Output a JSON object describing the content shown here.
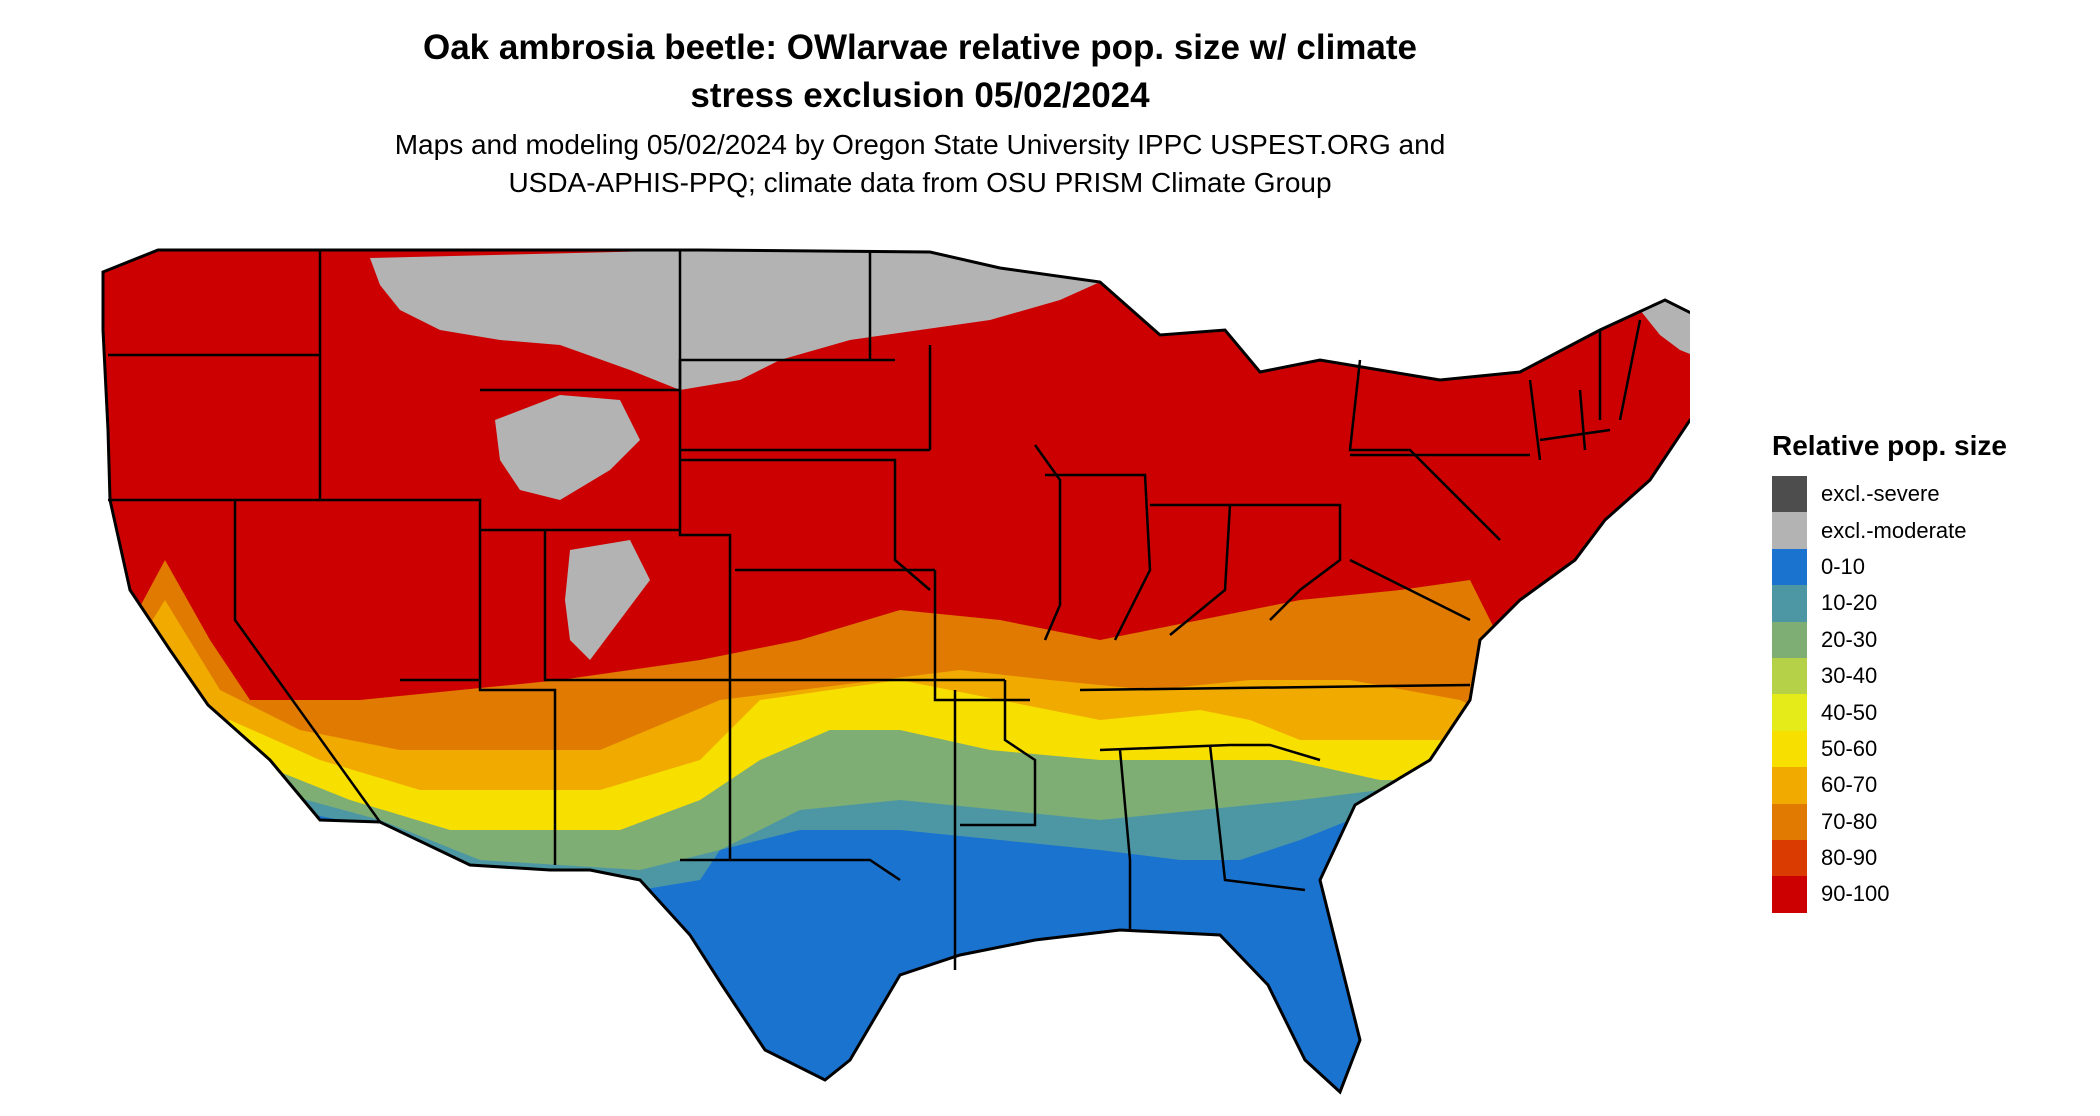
{
  "title_line1": "Oak ambrosia beetle: OWlarvae relative pop. size w/ climate",
  "title_line2": "stress exclusion 05/02/2024",
  "subtitle_line1": "Maps and modeling 05/02/2024 by Oregon State University IPPC USPEST.ORG and",
  "subtitle_line2": "USDA-APHIS-PPQ; climate data from OSU PRISM Climate Group",
  "legend": {
    "title": "Relative pop. size",
    "items": [
      {
        "label": "excl.-severe",
        "color": "#4d4d4d"
      },
      {
        "label": "excl.-moderate",
        "color": "#b3b3b3"
      },
      {
        "label": "0-10",
        "color": "#1a73cf"
      },
      {
        "label": "10-20",
        "color": "#4d97a5"
      },
      {
        "label": "20-30",
        "color": "#7fae74"
      },
      {
        "label": "30-40",
        "color": "#b5d147"
      },
      {
        "label": "40-50",
        "color": "#e5ea19"
      },
      {
        "label": "50-60",
        "color": "#f7df00"
      },
      {
        "label": "60-70",
        "color": "#f0aa00"
      },
      {
        "label": "70-80",
        "color": "#e07a00"
      },
      {
        "label": "80-90",
        "color": "#d93b00"
      },
      {
        "label": "90-100",
        "color": "#cc0000"
      }
    ]
  },
  "map": {
    "color_main": "#cc0000",
    "color_excluded": "#b3b3b3",
    "color_band_7080": "#e07a00",
    "color_band_6070": "#f0aa00",
    "color_band_5060": "#f7df00",
    "color_band_2030": "#7fae74",
    "color_band_1020": "#4d97a5",
    "color_band_010": "#1a73cf"
  }
}
